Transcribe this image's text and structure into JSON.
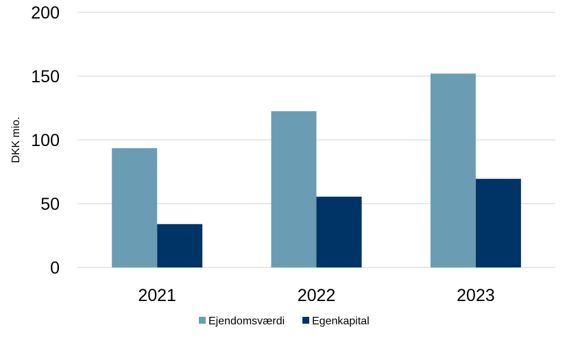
{
  "chart_data": {
    "type": "bar",
    "title": "",
    "xlabel": "",
    "ylabel": "DKK mio.",
    "categories": [
      "2021",
      "2022",
      "2023"
    ],
    "series": [
      {
        "name": "Ejendomsværdi",
        "values": [
          93.5,
          122.5,
          152
        ],
        "color": "#6a9db3"
      },
      {
        "name": "Egenkapital",
        "values": [
          34,
          55.5,
          69.5
        ],
        "color": "#003366"
      }
    ],
    "ylim": [
      0,
      200
    ],
    "yticks": [
      "0",
      "50",
      "100",
      "150",
      "200"
    ],
    "grid": true,
    "legend": "bottom"
  }
}
